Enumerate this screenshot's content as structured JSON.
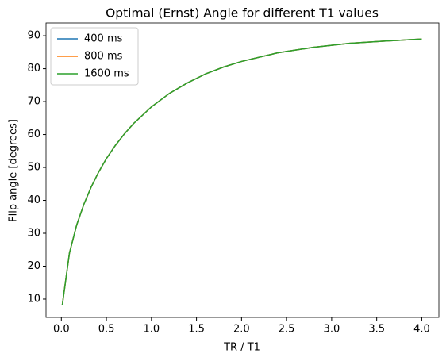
{
  "chart_data": {
    "type": "line",
    "title": "Optimal (Ernst) Angle for different T1 values",
    "xlabel": "TR / T1",
    "ylabel": "Flip angle [degrees]",
    "x": [
      0.01,
      0.09,
      0.17,
      0.25,
      0.33,
      0.41,
      0.5,
      0.6,
      0.7,
      0.8,
      1.0,
      1.2,
      1.4,
      1.6,
      1.8,
      2.0,
      2.4,
      2.8,
      3.2,
      3.6,
      4.0
    ],
    "series": [
      {
        "name": "400 ms",
        "color": "#1f77b4",
        "values": [
          8.1,
          24.0,
          32.5,
          38.8,
          44.0,
          48.4,
          52.7,
          56.7,
          60.2,
          63.3,
          68.4,
          72.5,
          75.7,
          78.4,
          80.5,
          82.2,
          84.8,
          86.5,
          87.7,
          88.4,
          89.0
        ]
      },
      {
        "name": "800 ms",
        "color": "#ff7f0e",
        "values": [
          8.1,
          24.0,
          32.5,
          38.8,
          44.0,
          48.4,
          52.7,
          56.7,
          60.2,
          63.3,
          68.4,
          72.5,
          75.7,
          78.4,
          80.5,
          82.2,
          84.8,
          86.5,
          87.7,
          88.4,
          89.0
        ]
      },
      {
        "name": "1600 ms",
        "color": "#2ca02c",
        "values": [
          8.1,
          24.0,
          32.5,
          38.8,
          44.0,
          48.4,
          52.7,
          56.7,
          60.2,
          63.3,
          68.4,
          72.5,
          75.7,
          78.4,
          80.5,
          82.2,
          84.8,
          86.5,
          87.7,
          88.4,
          89.0
        ]
      }
    ],
    "xlim": [
      -0.17,
      4.19
    ],
    "ylim": [
      4.45,
      93.88
    ],
    "xticks": [
      {
        "value": 0,
        "label": "0.0"
      },
      0.5,
      {
        "value": 1,
        "label": "1.0"
      },
      1.5,
      {
        "value": 2,
        "label": "2.0"
      },
      2.5,
      {
        "value": 3,
        "label": "3.0"
      },
      3.5,
      {
        "value": 4,
        "label": "4.0"
      }
    ],
    "yticks": [
      10,
      20,
      30,
      40,
      50,
      60,
      70,
      80,
      90
    ],
    "legend": "upper left"
  }
}
